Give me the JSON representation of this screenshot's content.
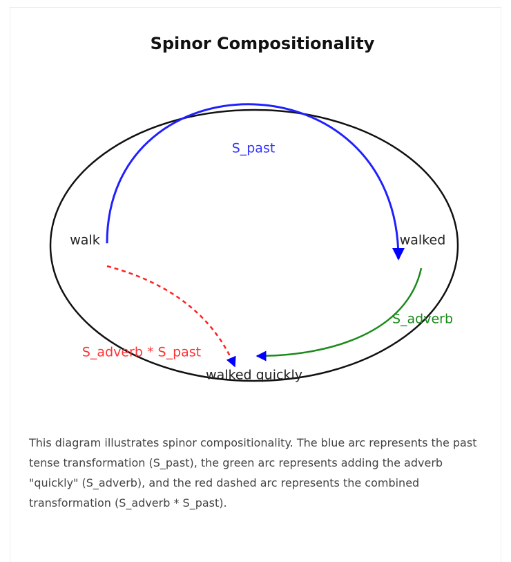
{
  "title": "Spinor Compositionality",
  "nodes": [
    {
      "label": "walk"
    },
    {
      "label": "walked"
    },
    {
      "label": "walked quickly"
    }
  ],
  "arcs": [
    {
      "label": "S_past"
    },
    {
      "label": "S_adverb"
    },
    {
      "label": "S_adverb * S_past"
    }
  ],
  "caption": "This diagram illustrates spinor compositionality. The blue arc represents the past tense transformation (S_past), the green arc represents adding the adverb \"quickly\" (S_adverb), and the red dashed arc represents the combined transformation (S_adverb * S_past)."
}
